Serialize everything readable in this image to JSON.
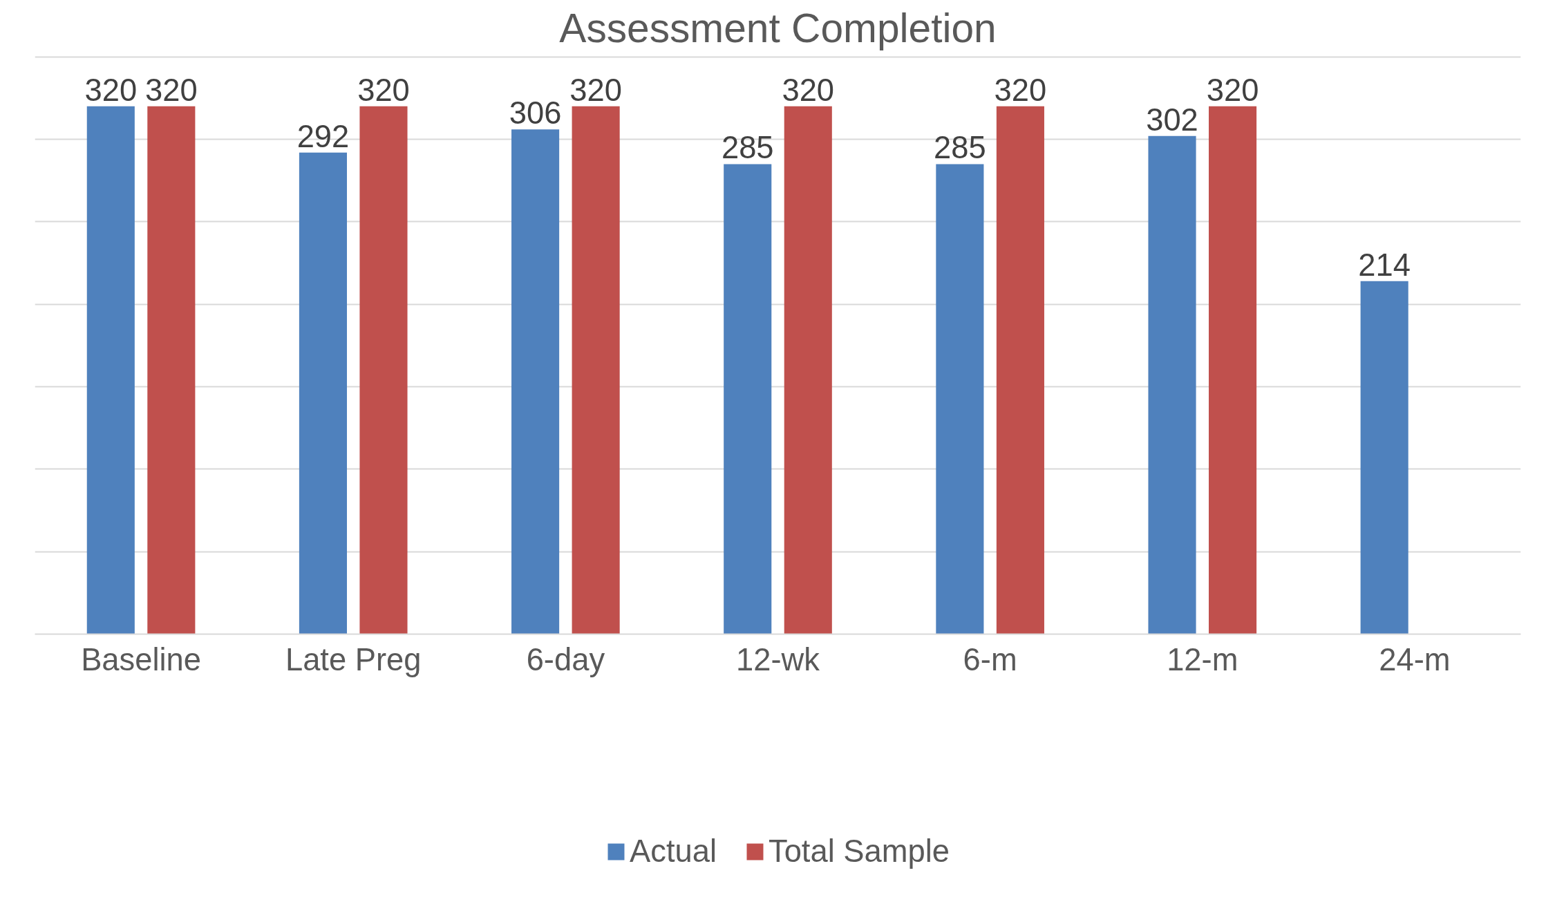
{
  "chart_data": {
    "type": "bar",
    "title": "Assessment Completion",
    "categories": [
      "Baseline",
      "Late Preg",
      "6-day",
      "12-wk",
      "6-m",
      "12-m",
      "24-m"
    ],
    "series": [
      {
        "name": "Actual",
        "color": "#4f81bd",
        "values": [
          320,
          292,
          306,
          285,
          285,
          302,
          214
        ]
      },
      {
        "name": "Total Sample",
        "color": "#c0504d",
        "values": [
          320,
          320,
          320,
          320,
          320,
          320,
          null
        ]
      }
    ],
    "tick_labels": "x",
    "grid": "y",
    "legend": "bottom",
    "data_labels": true
  }
}
